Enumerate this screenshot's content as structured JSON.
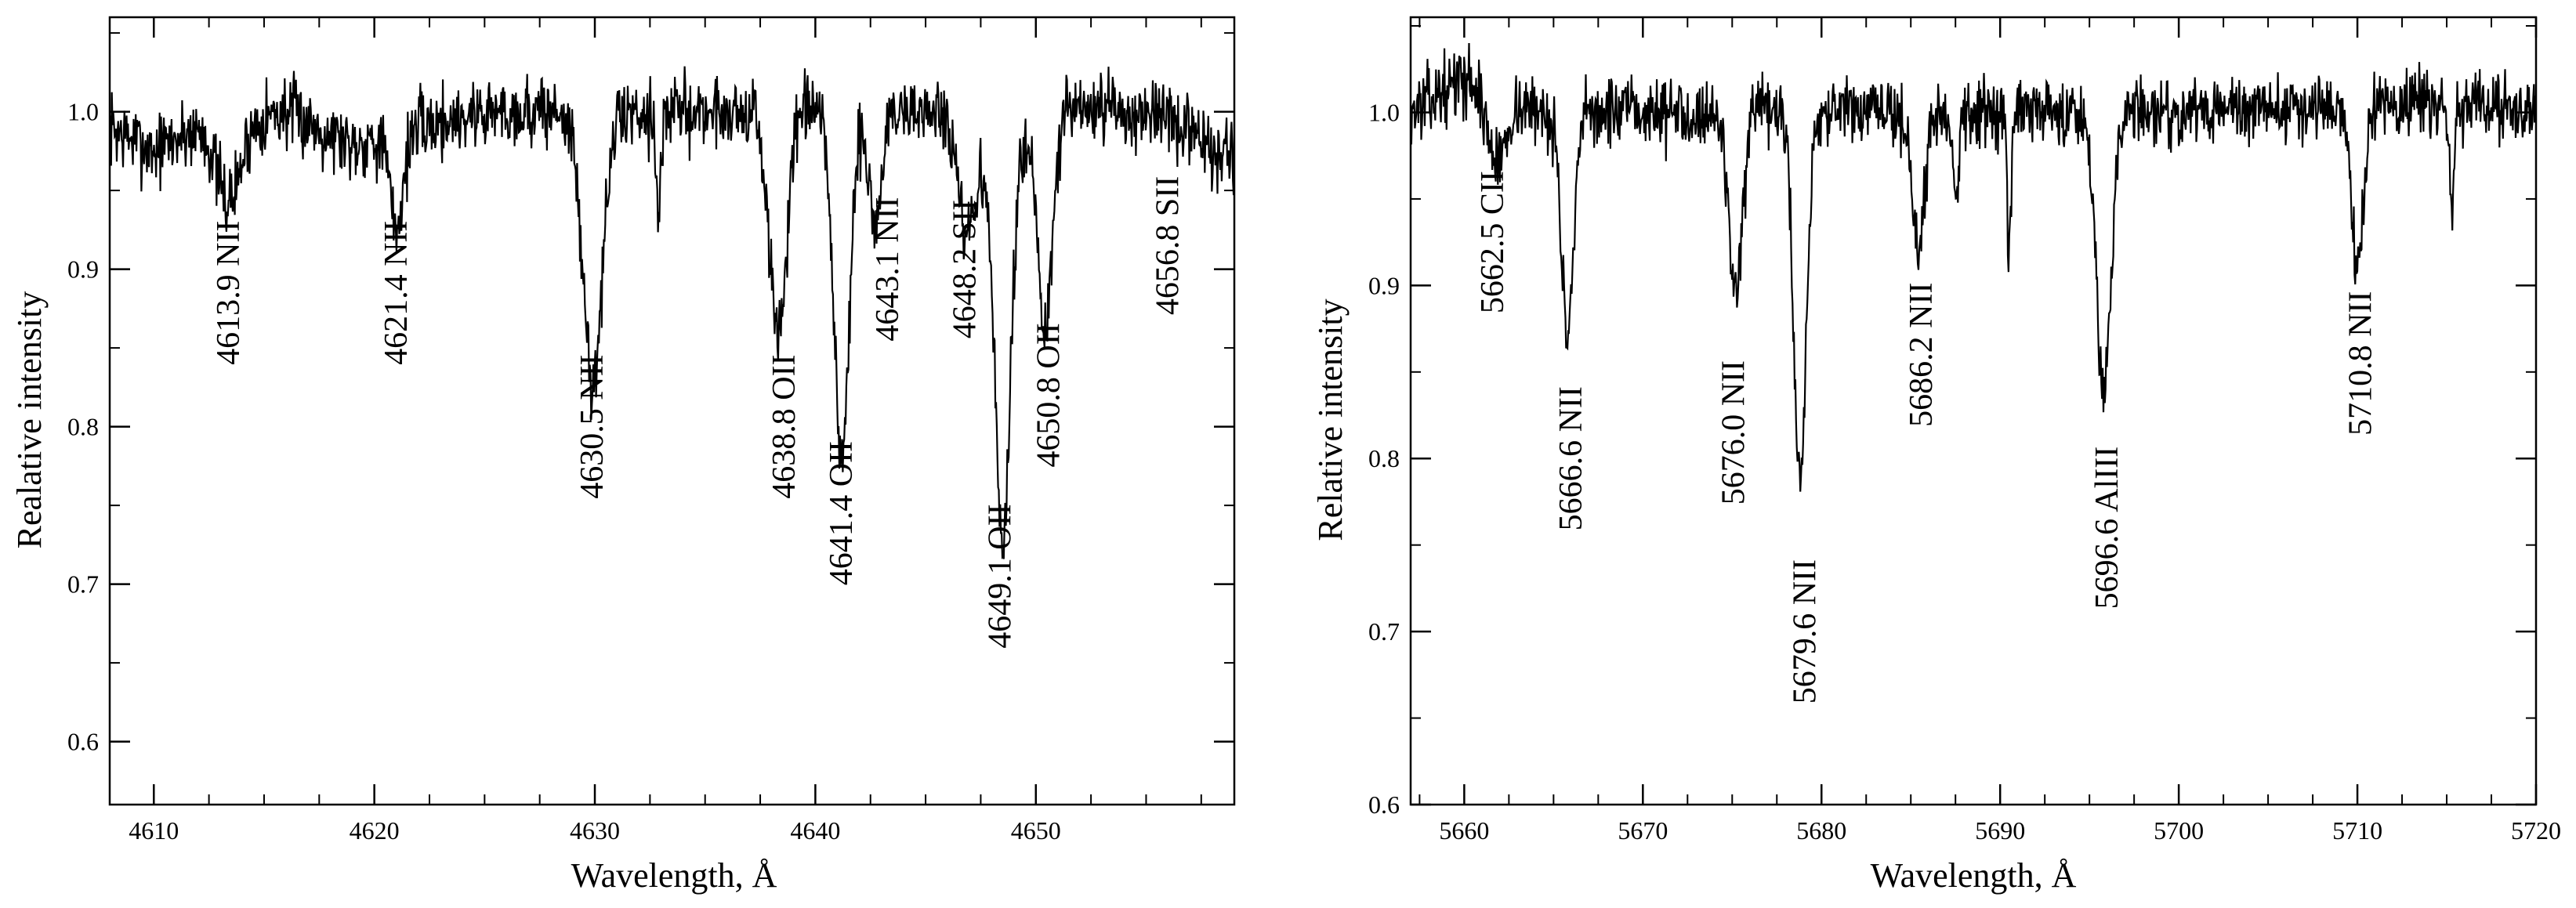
{
  "chart_data": [
    {
      "type": "line",
      "xlabel": "Wavelength, Å",
      "ylabel": "Realative  intensity",
      "xlim": [
        4608,
        4659
      ],
      "ylim": [
        0.56,
        1.06
      ],
      "xticks": [
        4610,
        4620,
        4630,
        4640,
        4650
      ],
      "xtick_labels": [
        "4610",
        "4620",
        "4630",
        "4640",
        "4650"
      ],
      "yticks": [
        0.6,
        0.7,
        0.8,
        0.9,
        1.0
      ],
      "ytick_labels": [
        "0.6",
        "0.7",
        "0.8",
        "0.9",
        "1.0"
      ],
      "grid": false,
      "noise": 0.018,
      "seed": 7,
      "continuum": [
        {
          "x": 4608,
          "y": 0.99
        },
        {
          "x": 4610,
          "y": 0.975
        },
        {
          "x": 4612,
          "y": 0.99
        },
        {
          "x": 4616,
          "y": 1.0
        },
        {
          "x": 4619,
          "y": 0.98
        },
        {
          "x": 4625,
          "y": 1.0
        },
        {
          "x": 4645,
          "y": 1.0
        },
        {
          "x": 4655,
          "y": 1.0
        },
        {
          "x": 4659,
          "y": 0.97
        }
      ],
      "absorption_lines": [
        {
          "x": 4613.4,
          "depth": 0.05,
          "width": 0.55
        },
        {
          "x": 4621.0,
          "depth": 0.06,
          "width": 0.3
        },
        {
          "x": 4629.9,
          "depth": 0.17,
          "width": 0.45
        },
        {
          "x": 4632.9,
          "depth": 0.06,
          "width": 0.12
        },
        {
          "x": 4638.3,
          "depth": 0.14,
          "width": 0.4
        },
        {
          "x": 4641.2,
          "depth": 0.22,
          "width": 0.35
        },
        {
          "x": 4642.7,
          "depth": 0.07,
          "width": 0.3
        },
        {
          "x": 4646.9,
          "depth": 0.08,
          "width": 0.45
        },
        {
          "x": 4648.5,
          "depth": 0.27,
          "width": 0.38
        },
        {
          "x": 4650.4,
          "depth": 0.14,
          "width": 0.35
        }
      ],
      "annotations": [
        {
          "text": "4613.9 NII",
          "x": 4613.4,
          "y": 0.885
        },
        {
          "text": "4621.4 NII",
          "x": 4621.0,
          "y": 0.885
        },
        {
          "text": "4630.5  NII",
          "x": 4629.9,
          "y": 0.8
        },
        {
          "text": "4638.8 OII",
          "x": 4638.6,
          "y": 0.8
        },
        {
          "text": "4641.4 OII",
          "x": 4641.2,
          "y": 0.745
        },
        {
          "text": "4643.1 NII",
          "x": 4643.3,
          "y": 0.9
        },
        {
          "text": "4648.2 SII",
          "x": 4646.8,
          "y": 0.9
        },
        {
          "text": "4649.1  OII",
          "x": 4648.4,
          "y": 0.705
        },
        {
          "text": "4650.8  OII",
          "x": 4650.6,
          "y": 0.82
        },
        {
          "text": "4656.8 SII",
          "x": 4656.0,
          "y": 0.915
        }
      ]
    },
    {
      "type": "line",
      "xlabel": "Wavelength, Å",
      "ylabel": "Relative intensity",
      "xlim": [
        5657,
        5720
      ],
      "ylim": [
        0.6,
        1.055
      ],
      "xticks": [
        5660,
        5670,
        5680,
        5690,
        5700,
        5710,
        5720
      ],
      "xtick_labels": [
        "5660",
        "5670",
        "5680",
        "5690",
        "5700",
        "5710",
        "5720"
      ],
      "yticks": [
        0.6,
        0.7,
        0.8,
        0.9,
        1.0
      ],
      "ytick_labels": [
        "0.6",
        "0.7",
        "0.8",
        "0.9",
        "1.0"
      ],
      "grid": false,
      "noise": 0.015,
      "seed": 13,
      "continuum": [
        {
          "x": 5657,
          "y": 1.0
        },
        {
          "x": 5660,
          "y": 1.02
        },
        {
          "x": 5664,
          "y": 1.0
        },
        {
          "x": 5700,
          "y": 1.0
        },
        {
          "x": 5712,
          "y": 1.005
        },
        {
          "x": 5720,
          "y": 1.0
        }
      ],
      "absorption_lines": [
        {
          "x": 5661.8,
          "depth": 0.04,
          "width": 0.5
        },
        {
          "x": 5665.8,
          "depth": 0.13,
          "width": 0.35
        },
        {
          "x": 5675.2,
          "depth": 0.1,
          "width": 0.4
        },
        {
          "x": 5678.8,
          "depth": 0.21,
          "width": 0.35
        },
        {
          "x": 5685.4,
          "depth": 0.08,
          "width": 0.35
        },
        {
          "x": 5687.5,
          "depth": 0.05,
          "width": 0.15
        },
        {
          "x": 5690.5,
          "depth": 0.08,
          "width": 0.12
        },
        {
          "x": 5695.8,
          "depth": 0.16,
          "width": 0.4
        },
        {
          "x": 5710.0,
          "depth": 0.09,
          "width": 0.35
        },
        {
          "x": 5715.3,
          "depth": 0.06,
          "width": 0.12
        }
      ],
      "annotations": [
        {
          "text": "5662.5  CII",
          "x": 5661.6,
          "y": 0.925
        },
        {
          "text": "5666.6 NII",
          "x": 5666.0,
          "y": 0.8
        },
        {
          "text": "5676.0 NII",
          "x": 5675.1,
          "y": 0.815
        },
        {
          "text": "5679.6 NII",
          "x": 5679.1,
          "y": 0.7
        },
        {
          "text": "5686.2 NII",
          "x": 5685.6,
          "y": 0.86
        },
        {
          "text": "5696.6 AlIII",
          "x": 5696.0,
          "y": 0.76
        },
        {
          "text": "5710.8 NII",
          "x": 5710.2,
          "y": 0.855
        }
      ]
    }
  ]
}
